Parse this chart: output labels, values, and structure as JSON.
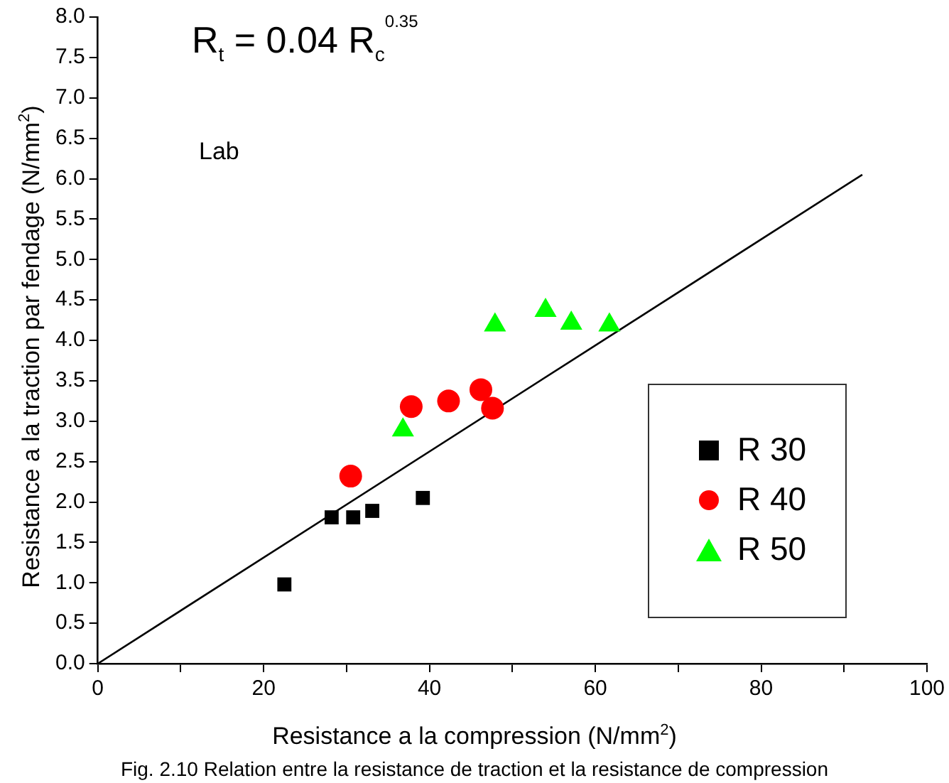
{
  "chart_data": {
    "type": "scatter",
    "title": "R$_{t}$ =  0.04 R$_{c}$$^{0.35}$",
    "xlabel": "Resistance a la compression   (N/mm$^{2}$)",
    "ylabel": "Resistance a la traction par fendage  (N/mm$^{2}$)",
    "annotations": [
      "Lab",
      "Fig. 2.10 Relation entre la resistance de traction et la resistance de compression"
    ],
    "xlim": [
      0,
      100
    ],
    "ylim": [
      0,
      8
    ],
    "xticks": [
      0,
      {
        "value": 10,
        "label": null
      },
      20,
      {
        "value": 30,
        "label": null
      },
      40,
      {
        "value": 50,
        "label": null
      },
      60,
      {
        "value": 70,
        "label": null
      },
      80,
      {
        "value": 90,
        "label": null
      },
      100
    ],
    "yticks": [
      {
        "value": 0,
        "label": "0.0"
      },
      0.5,
      {
        "value": 1,
        "label": "1.0"
      },
      1.5,
      {
        "value": 2,
        "label": "2.0"
      },
      2.5,
      {
        "value": 3,
        "label": "3.0"
      },
      3.5,
      {
        "value": 4,
        "label": "4.0"
      },
      4.5,
      {
        "value": 5,
        "label": "5.0"
      },
      5.5,
      {
        "value": 6,
        "label": "6.0"
      },
      6.5,
      {
        "value": 7,
        "label": "7.0"
      },
      7.5,
      {
        "value": 8,
        "label": "8.0"
      }
    ],
    "grid": false,
    "legend": "right",
    "series": [
      {
        "name": "R 30",
        "color": "#000000",
        "marker": "square",
        "x": [
          22.5,
          28.2,
          30.8,
          33.1,
          39.2
        ],
        "values": [
          0.98,
          1.81,
          1.81,
          1.89,
          2.05
        ]
      },
      {
        "name": "R 40",
        "color": "#ff0000",
        "marker": "circle",
        "x": [
          30.5,
          37.8,
          42.3,
          46.2,
          47.6
        ],
        "values": [
          2.32,
          3.18,
          3.25,
          3.39,
          3.16
        ]
      },
      {
        "name": "R 50",
        "color": "#00ff00",
        "marker": "triangle",
        "x": [
          36.8,
          47.9,
          54.0,
          57.1,
          61.7
        ],
        "values": [
          2.89,
          4.19,
          4.37,
          4.21,
          4.19
        ]
      },
      {
        "type": "line",
        "color": "#000000",
        "marker": "none",
        "x": [
          0,
          92.2
        ],
        "values": [
          0,
          6.05
        ]
      }
    ]
  }
}
